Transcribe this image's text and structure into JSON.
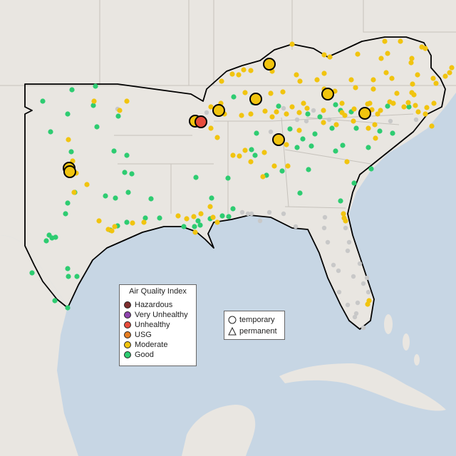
{
  "legend": {
    "title": "Air Quality Index",
    "categories": [
      {
        "label": "Hazardous",
        "color": "#7e2e2e"
      },
      {
        "label": "Very Unhealthy",
        "color": "#8e44ad"
      },
      {
        "label": "Unhealthy",
        "color": "#e74c3c"
      },
      {
        "label": "USG",
        "color": "#e67e22"
      },
      {
        "label": "Moderate",
        "color": "#f1c40f"
      },
      {
        "label": "Good",
        "color": "#2ecc71"
      }
    ]
  },
  "shape_legend": {
    "temporary": "temporary",
    "permanent": "permanent"
  },
  "colors": {
    "land": "#e9e6e1",
    "water": "#c7d6e4",
    "no_data": "#c8c8c8",
    "boundary": "#000000"
  }
}
